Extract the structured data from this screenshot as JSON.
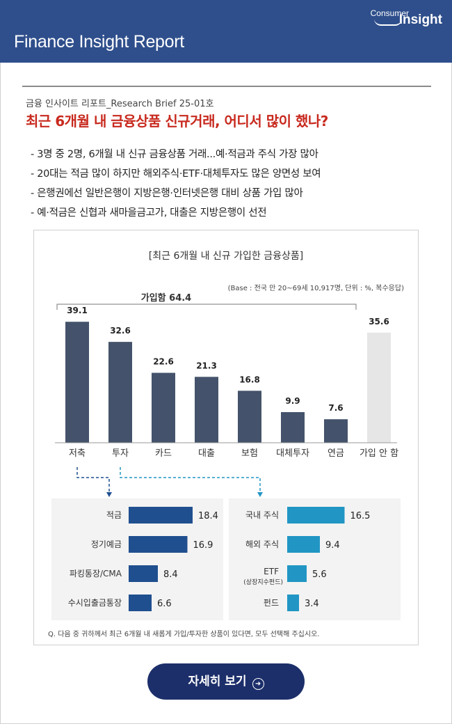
{
  "header": {
    "title": "Finance Insight Report",
    "logo_line1": "Consumer",
    "logo_line2": "Insight",
    "background": "#2f4f8c"
  },
  "report": {
    "subtitle": "금융 인사이트 리포트_Research Brief 25-01호",
    "title": "최근 6개월 내 금융상품 신규거래, 어디서 많이 했나?",
    "title_color": "#c8291e",
    "bullets": [
      "- 3명 중 2명, 6개월 내 신규 금융상품 거래...예·적금과 주식 가장 많아",
      "- 20대는 적금 많이 하지만 해외주식·ETF·대체투자도 많은 양면성 보여",
      "- 은행권에선 일반은행이 지방은행·인터넷은행 대비 상품 가입 많아",
      "- 예·적금은 신협과 새마을금고가, 대출은 지방은행이 선전"
    ]
  },
  "chart_data": [
    {
      "type": "bar",
      "title": "[최근 6개월 내 신규 가입한 금융상품]",
      "note": "(Base : 전국 만 20~69세 10,917명, 단위 : %, 복수응답)",
      "bracket_label": "가입함 64.4",
      "categories": [
        "저축",
        "투자",
        "카드",
        "대출",
        "보험",
        "대체투자",
        "연금",
        "가입 안 함"
      ],
      "values": [
        39.1,
        32.6,
        22.6,
        21.3,
        16.8,
        9.9,
        7.6,
        35.6
      ],
      "ylim": [
        0,
        45
      ],
      "bar_colors": [
        "#44536b",
        "#44536b",
        "#44536b",
        "#44536b",
        "#44536b",
        "#44536b",
        "#44536b",
        "#e6e6e6"
      ]
    },
    {
      "type": "bar",
      "orientation": "horizontal",
      "parent": "저축",
      "categories": [
        "적금",
        "정기예금",
        "파킹통장/CMA",
        "수시입출금통장"
      ],
      "values": [
        18.4,
        16.9,
        8.4,
        6.6
      ],
      "color": "#1f4f8f"
    },
    {
      "type": "bar",
      "orientation": "horizontal",
      "parent": "투자",
      "categories": [
        "국내 주식",
        "해외 주식",
        "ETF",
        "펀드"
      ],
      "category_sublabels": [
        "",
        "",
        "(상장지수펀드)",
        ""
      ],
      "values": [
        16.5,
        9.4,
        5.6,
        3.4
      ],
      "color": "#2196c4"
    }
  ],
  "chart_footnote": "Q. 다음 중 귀하께서 최근 6개월 내 새롭게 가입/투자한 상품이 있다면, 모두 선택해 주십시오.",
  "cta": {
    "label": "자세히 보기",
    "icon": "arrow-circle-icon"
  }
}
